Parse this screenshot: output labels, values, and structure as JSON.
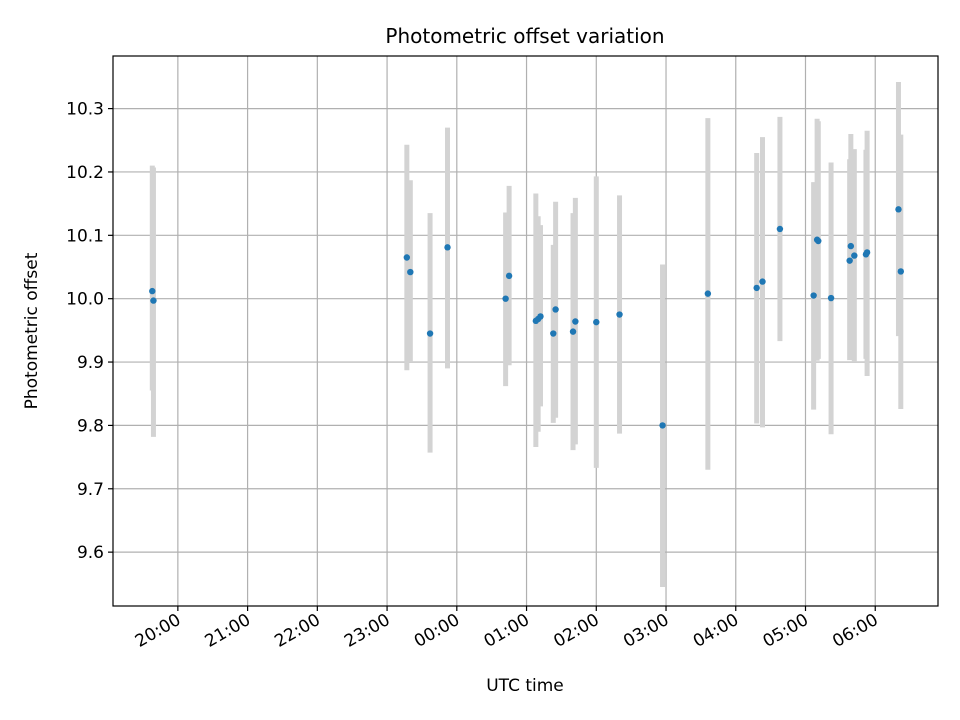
{
  "chart_data": {
    "type": "scatter",
    "title": "Photometric offset variation",
    "xlabel": "UTC time",
    "ylabel": "Photometric offset",
    "x_tick_labels": [
      "20:00",
      "21:00",
      "22:00",
      "23:00",
      "00:00",
      "01:00",
      "02:00",
      "03:00",
      "04:00",
      "05:00",
      "06:00"
    ],
    "y_tick_labels": [
      "9.6",
      "9.7",
      "9.8",
      "9.9",
      "10.0",
      "10.1",
      "10.2",
      "10.3"
    ],
    "y_ticks": [
      9.6,
      9.7,
      9.8,
      9.9,
      10.0,
      10.1,
      10.2,
      10.3
    ],
    "x_ticks_hours": [
      20,
      21,
      22,
      23,
      24,
      25,
      26,
      27,
      28,
      29,
      30
    ],
    "xlim_hours": [
      19.07,
      30.9
    ],
    "ylim": [
      9.515,
      10.383
    ],
    "grid": true,
    "colors": {
      "point": "#1f77b4",
      "errorbar": "#d3d3d3",
      "grid": "#b0b0b0"
    },
    "points": [
      {
        "t": "19:38",
        "y": 10.012,
        "lo": 9.855,
        "hi": 10.21
      },
      {
        "t": "19:39",
        "y": 9.997,
        "lo": 9.782,
        "hi": 10.207
      },
      {
        "t": "23:17",
        "y": 10.065,
        "lo": 9.887,
        "hi": 10.243
      },
      {
        "t": "23:20",
        "y": 10.042,
        "lo": 9.9,
        "hi": 10.187
      },
      {
        "t": "23:37",
        "y": 9.945,
        "lo": 9.757,
        "hi": 10.135
      },
      {
        "t": "23:52",
        "y": 10.081,
        "lo": 9.89,
        "hi": 10.27
      },
      {
        "t": "00:42",
        "y": 10.0,
        "lo": 9.862,
        "hi": 10.136
      },
      {
        "t": "00:45",
        "y": 10.036,
        "lo": 9.895,
        "hi": 10.178
      },
      {
        "t": "01:08",
        "y": 9.965,
        "lo": 9.766,
        "hi": 10.166
      },
      {
        "t": "01:10",
        "y": 9.968,
        "lo": 9.79,
        "hi": 10.13
      },
      {
        "t": "01:12",
        "y": 9.972,
        "lo": 9.83,
        "hi": 10.116
      },
      {
        "t": "01:23",
        "y": 9.945,
        "lo": 9.804,
        "hi": 10.085
      },
      {
        "t": "01:25",
        "y": 9.983,
        "lo": 9.812,
        "hi": 10.153
      },
      {
        "t": "01:40",
        "y": 9.948,
        "lo": 9.761,
        "hi": 10.135
      },
      {
        "t": "01:42",
        "y": 9.964,
        "lo": 9.77,
        "hi": 10.159
      },
      {
        "t": "02:00",
        "y": 9.963,
        "lo": 9.733,
        "hi": 10.193
      },
      {
        "t": "02:20",
        "y": 9.975,
        "lo": 9.787,
        "hi": 10.163
      },
      {
        "t": "02:57",
        "y": 9.8,
        "lo": 9.545,
        "hi": 10.054
      },
      {
        "t": "03:36",
        "y": 10.008,
        "lo": 9.73,
        "hi": 10.285
      },
      {
        "t": "04:18",
        "y": 10.017,
        "lo": 9.803,
        "hi": 10.23
      },
      {
        "t": "04:23",
        "y": 10.027,
        "lo": 9.797,
        "hi": 10.255
      },
      {
        "t": "04:38",
        "y": 10.11,
        "lo": 9.933,
        "hi": 10.287
      },
      {
        "t": "05:07",
        "y": 10.005,
        "lo": 9.825,
        "hi": 10.184
      },
      {
        "t": "05:10",
        "y": 10.093,
        "lo": 9.902,
        "hi": 10.284
      },
      {
        "t": "05:11",
        "y": 10.091,
        "lo": 9.905,
        "hi": 10.28
      },
      {
        "t": "05:22",
        "y": 10.001,
        "lo": 9.786,
        "hi": 10.215
      },
      {
        "t": "05:38",
        "y": 10.06,
        "lo": 9.903,
        "hi": 10.22
      },
      {
        "t": "05:39",
        "y": 10.083,
        "lo": 9.905,
        "hi": 10.26
      },
      {
        "t": "05:42",
        "y": 10.068,
        "lo": 9.9,
        "hi": 10.236
      },
      {
        "t": "05:52",
        "y": 10.07,
        "lo": 9.905,
        "hi": 10.235
      },
      {
        "t": "05:53",
        "y": 10.073,
        "lo": 9.878,
        "hi": 10.265
      },
      {
        "t": "06:20",
        "y": 10.141,
        "lo": 9.941,
        "hi": 10.342
      },
      {
        "t": "06:22",
        "y": 10.043,
        "lo": 9.826,
        "hi": 10.259
      }
    ]
  }
}
